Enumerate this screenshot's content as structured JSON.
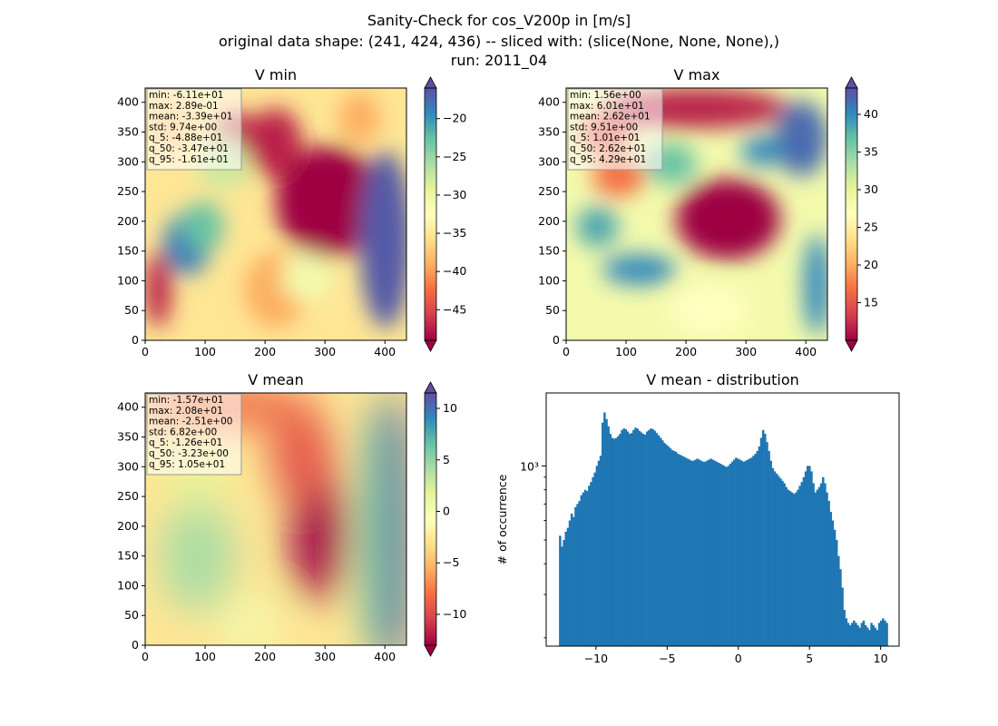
{
  "title": {
    "line1": "Sanity-Check for cos_V200p in [m/s]",
    "line2": "original data shape: (241, 424, 436) -- sliced with: (slice(None, None, None),)",
    "line3": "run: 2011_04"
  },
  "chart_data": [
    {
      "type": "heatmap",
      "title": "V min",
      "colormap": "Spectral",
      "xlim": [
        0,
        436
      ],
      "ylim": [
        0,
        424
      ],
      "xticks": [
        0,
        100,
        200,
        300,
        400
      ],
      "yticks": [
        0,
        50,
        100,
        150,
        200,
        250,
        300,
        350,
        400
      ],
      "colorbar": {
        "range": [
          -49,
          -16
        ],
        "ticks": [
          -45,
          -40,
          -35,
          -30,
          -25,
          -20
        ],
        "tick_labels": [
          "−45",
          "−40",
          "−35",
          "−30",
          "−25",
          "−20"
        ],
        "extend": "both"
      },
      "stats": [
        "min: -6.11e+01",
        "max: 2.89e-01",
        "mean: -3.39e+01",
        "std: 9.74e+00",
        "q_5: -4.88e+01",
        "q_50: -3.47e+01",
        "q_95: -1.61e+01"
      ]
    },
    {
      "type": "heatmap",
      "title": "V max",
      "colormap": "Spectral",
      "xlim": [
        0,
        436
      ],
      "ylim": [
        0,
        424
      ],
      "xticks": [
        0,
        100,
        200,
        300,
        400
      ],
      "yticks": [
        0,
        50,
        100,
        150,
        200,
        250,
        300,
        350,
        400
      ],
      "colorbar": {
        "range": [
          10,
          43.5
        ],
        "ticks": [
          15,
          20,
          25,
          30,
          35,
          40
        ],
        "tick_labels": [
          "15",
          "20",
          "25",
          "30",
          "35",
          "40"
        ],
        "extend": "both"
      },
      "stats": [
        "min: 1.56e+00",
        "max: 6.01e+01",
        "mean: 2.62e+01",
        "std: 9.51e+00",
        "q_5: 1.01e+01",
        "q_50: 2.62e+01",
        "q_95: 4.29e+01"
      ]
    },
    {
      "type": "heatmap",
      "title": "V mean",
      "colormap": "Spectral",
      "xlim": [
        0,
        436
      ],
      "ylim": [
        0,
        424
      ],
      "xticks": [
        0,
        100,
        200,
        300,
        400
      ],
      "yticks": [
        0,
        50,
        100,
        150,
        200,
        250,
        300,
        350,
        400
      ],
      "colorbar": {
        "range": [
          -13,
          11.5
        ],
        "ticks": [
          -10,
          -5,
          0,
          5,
          10
        ],
        "tick_labels": [
          "−10",
          "−5",
          "0",
          "5",
          "10"
        ],
        "extend": "both"
      },
      "stats": [
        "min: -1.57e+01",
        "max: 2.08e+01",
        "mean: -2.51e+00",
        "std: 6.82e+00",
        "q_5: -1.26e+01",
        "q_50: -3.23e+00",
        "q_95: 1.05e+01"
      ]
    },
    {
      "type": "bar",
      "title": "V mean - distribution",
      "ylabel": "# of occurrence",
      "yscale": "log",
      "xlim": [
        -13.5,
        11.3
      ],
      "ylim": [
        185,
        1980
      ],
      "xticks": [
        -10,
        -5,
        0,
        5,
        10
      ],
      "xtick_labels": [
        "−10",
        "−5",
        "0",
        "5",
        "10"
      ],
      "ytick_label": "10³",
      "color": "#1f77b4",
      "x_range": [
        -12.6,
        10.5
      ],
      "counts": [
        520,
        470,
        500,
        540,
        560,
        600,
        640,
        620,
        680,
        700,
        720,
        760,
        780,
        800,
        790,
        830,
        860,
        900,
        940,
        1000,
        1050,
        1100,
        1500,
        1650,
        1550,
        1450,
        1350,
        1300,
        1290,
        1300,
        1320,
        1350,
        1400,
        1420,
        1410,
        1380,
        1350,
        1360,
        1400,
        1430,
        1420,
        1390,
        1370,
        1350,
        1340,
        1380,
        1400,
        1420,
        1410,
        1390,
        1360,
        1330,
        1300,
        1270,
        1240,
        1220,
        1200,
        1180,
        1160,
        1150,
        1140,
        1120,
        1110,
        1100,
        1090,
        1080,
        1070,
        1060,
        1050,
        1050,
        1060,
        1070,
        1060,
        1050,
        1040,
        1040,
        1050,
        1060,
        1070,
        1060,
        1050,
        1040,
        1030,
        1020,
        1010,
        1000,
        990,
        1000,
        1020,
        1040,
        1060,
        1080,
        1070,
        1060,
        1050,
        1040,
        1050,
        1060,
        1070,
        1080,
        1100,
        1120,
        1150,
        1200,
        1300,
        1400,
        1350,
        1250,
        1150,
        1050,
        980,
        950,
        930,
        910,
        890,
        870,
        850,
        820,
        800,
        790,
        780,
        770,
        780,
        800,
        830,
        860,
        900,
        950,
        1000,
        1000,
        950,
        850,
        780,
        800,
        820,
        850,
        900,
        850,
        780,
        720,
        650,
        600,
        550,
        500,
        430,
        380,
        320,
        260,
        240,
        230,
        225,
        230,
        235,
        230,
        225,
        220,
        230,
        235,
        225,
        220,
        215,
        230,
        225,
        220,
        215,
        230,
        235,
        240,
        235,
        230
      ]
    }
  ]
}
